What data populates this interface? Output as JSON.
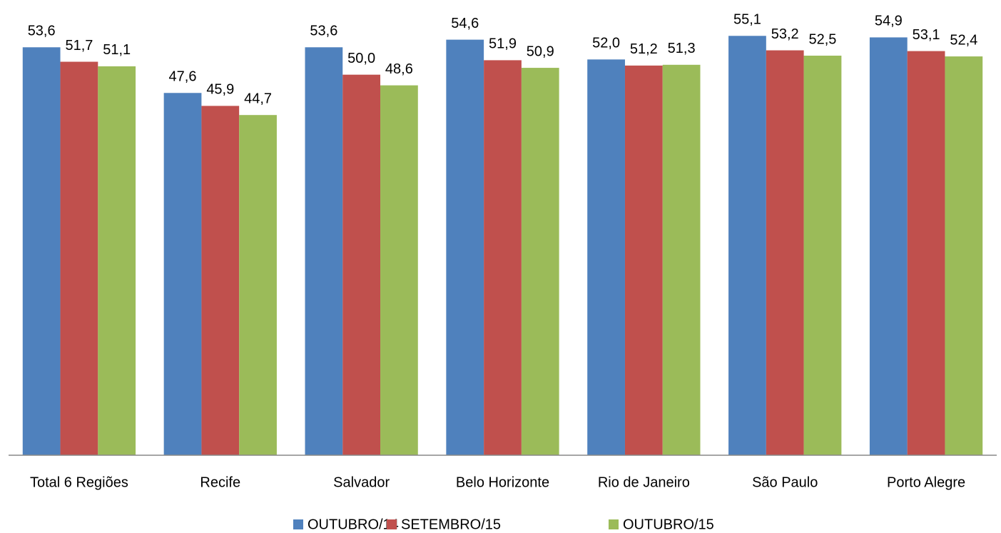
{
  "chart_data": {
    "type": "bar",
    "categories": [
      "Total 6 Regiões",
      "Recife",
      "Salvador",
      "Belo Horizonte",
      "Rio de Janeiro",
      "São Paulo",
      "Porto Alegre"
    ],
    "series": [
      {
        "name": "OUTUBRO/14",
        "color": "#4f81bd",
        "values": [
          53.6,
          47.6,
          53.6,
          54.6,
          52.0,
          55.1,
          54.9
        ],
        "value_labels": [
          "53,6",
          "47,6",
          "53,6",
          "54,6",
          "52,0",
          "55,1",
          "54,9"
        ]
      },
      {
        "name": "SETEMBRO/15",
        "color": "#c0504d",
        "values": [
          51.7,
          45.9,
          50.0,
          51.9,
          51.2,
          53.2,
          53.1
        ],
        "value_labels": [
          "51,7",
          "45,9",
          "50,0",
          "51,9",
          "51,2",
          "53,2",
          "53,1"
        ]
      },
      {
        "name": "OUTUBRO/15",
        "color": "#9bbb59",
        "values": [
          51.1,
          44.7,
          48.6,
          50.9,
          51.3,
          52.5,
          52.4
        ],
        "value_labels": [
          "51,1",
          "44,7",
          "48,6",
          "50,9",
          "51,3",
          "52,5",
          "52,4"
        ]
      }
    ],
    "ylim": [
      0,
      60
    ],
    "legend": "bottom"
  }
}
